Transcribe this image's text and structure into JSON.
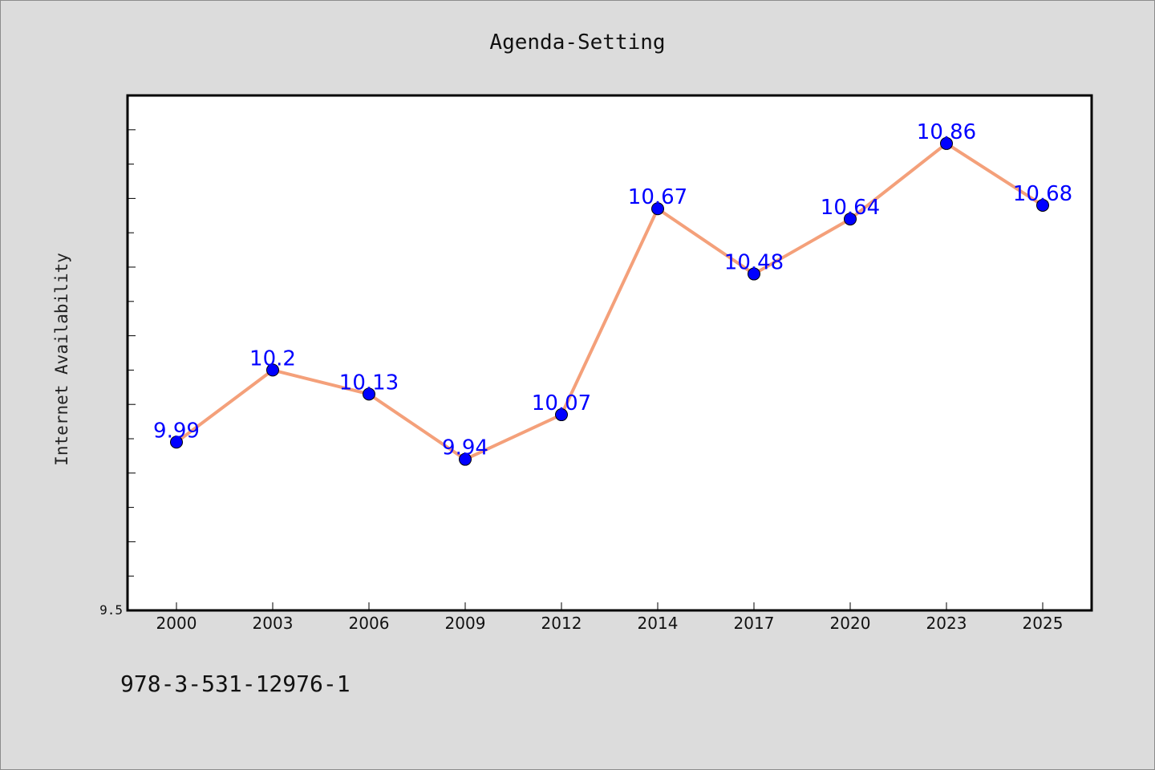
{
  "chart_data": {
    "type": "line",
    "title": "Agenda-Setting",
    "xlabel": "",
    "ylabel": "Internet Availability",
    "categories": [
      "2000",
      "2003",
      "2006",
      "2009",
      "2012",
      "2014",
      "2017",
      "2020",
      "2023",
      "2025"
    ],
    "series": [
      {
        "values": [
          9.99,
          10.2,
          10.13,
          9.94,
          10.07,
          10.67,
          10.48,
          10.64,
          10.86,
          10.68
        ],
        "data_labels": [
          "9.99",
          "10.2",
          "10.13",
          "9.94",
          "10.07",
          "10.67",
          "10.48",
          "10.64",
          "10.86",
          "10.68"
        ],
        "line_color": "#f4a07a",
        "marker_color": "#0000ff"
      }
    ],
    "ylim": [
      9.5,
      11.0
    ],
    "ytick_labels": [
      {
        "value": 9.5,
        "label": "9.5"
      }
    ],
    "grid": false,
    "legend": "none"
  },
  "footer": {
    "isbn": "978-3-531-12976-1"
  },
  "colors": {
    "background": "#dcdcdc",
    "plot_background": "#ffffff",
    "line": "#f4a07a",
    "marker": "#0000ff",
    "data_label": "#0000ff"
  }
}
